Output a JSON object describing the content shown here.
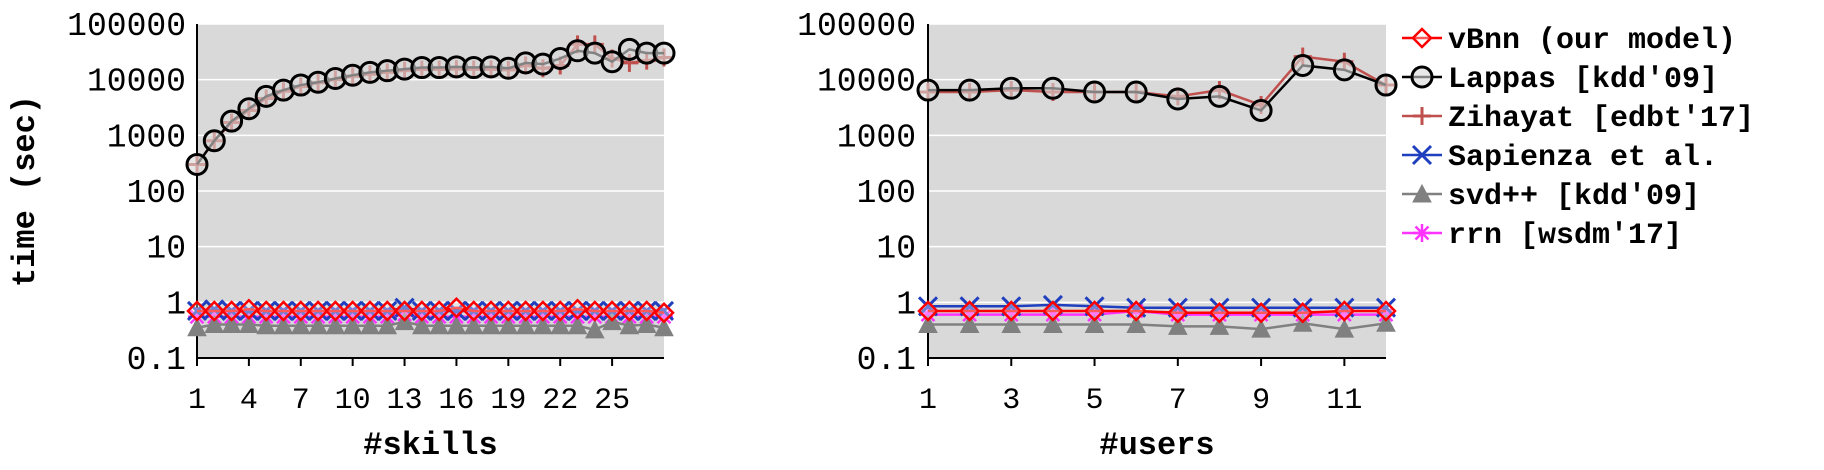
{
  "chart_data": [
    {
      "type": "line",
      "xlabel": "#skills",
      "ylabel": "time (sec)",
      "yscale": "log",
      "ylim": [
        0.1,
        100000
      ],
      "xlim": [
        1,
        28
      ],
      "ytick_labels": [
        "100000",
        "10000",
        "1000",
        "100",
        "10",
        "1",
        "0.1"
      ],
      "xtick_labels": [
        "1",
        "4",
        "7",
        "10",
        "13",
        "16",
        "19",
        "22",
        "25"
      ],
      "xtick_values": [
        1,
        4,
        7,
        10,
        13,
        16,
        19,
        22,
        25
      ],
      "grid": true,
      "background": "#d9d9d9",
      "x": [
        1,
        2,
        3,
        4,
        5,
        6,
        7,
        8,
        9,
        10,
        11,
        12,
        13,
        14,
        15,
        16,
        17,
        18,
        19,
        20,
        21,
        22,
        23,
        24,
        25,
        26,
        27,
        28
      ],
      "series": [
        {
          "name": "vBnn (our model)",
          "color": "#ff0000",
          "marker": "diamond",
          "values": [
            0.7,
            0.7,
            0.7,
            0.75,
            0.7,
            0.7,
            0.7,
            0.7,
            0.7,
            0.7,
            0.7,
            0.7,
            0.7,
            0.7,
            0.7,
            0.8,
            0.7,
            0.7,
            0.7,
            0.7,
            0.7,
            0.7,
            0.75,
            0.7,
            0.7,
            0.7,
            0.7,
            0.65
          ]
        },
        {
          "name": "Lappas [kdd'09]",
          "color": "#000000",
          "marker": "circle",
          "values": [
            300,
            800,
            1800,
            3000,
            5000,
            6500,
            8000,
            9000,
            10500,
            12000,
            13500,
            14500,
            15500,
            16500,
            16500,
            17000,
            16500,
            17000,
            16000,
            20000,
            19000,
            24000,
            33000,
            30000,
            21000,
            35000,
            30000,
            30000
          ]
        },
        {
          "name": "Zihayat [edbt'17]",
          "color": "#c0504d",
          "marker": "plus",
          "values": [
            300,
            800,
            1700,
            2800,
            4600,
            6200,
            7500,
            8800,
            10000,
            11500,
            12500,
            13500,
            14500,
            15200,
            15200,
            15500,
            15300,
            15300,
            15000,
            18000,
            16000,
            18000,
            43000,
            43000,
            24000,
            20000,
            22000,
            25000
          ]
        },
        {
          "name": "Sapienza et al.",
          "color": "#1f3fbf",
          "marker": "x",
          "values": [
            0.7,
            0.75,
            0.7,
            0.7,
            0.7,
            0.7,
            0.7,
            0.7,
            0.7,
            0.7,
            0.7,
            0.7,
            0.8,
            0.7,
            0.7,
            0.7,
            0.7,
            0.7,
            0.7,
            0.7,
            0.7,
            0.7,
            0.7,
            0.7,
            0.7,
            0.7,
            0.7,
            0.7
          ]
        },
        {
          "name": "svd++ [kdd'09]",
          "color": "#808080",
          "marker": "triangle",
          "values": [
            0.35,
            0.4,
            0.4,
            0.4,
            0.38,
            0.38,
            0.38,
            0.38,
            0.38,
            0.38,
            0.38,
            0.38,
            0.45,
            0.38,
            0.38,
            0.38,
            0.38,
            0.38,
            0.38,
            0.38,
            0.38,
            0.38,
            0.38,
            0.32,
            0.45,
            0.38,
            0.4,
            0.35
          ]
        },
        {
          "name": "rrn [wsdm'17]",
          "color": "#ff33ff",
          "marker": "asterisk",
          "values": [
            0.55,
            0.55,
            0.55,
            0.55,
            0.55,
            0.55,
            0.55,
            0.55,
            0.55,
            0.55,
            0.55,
            0.55,
            0.6,
            0.55,
            0.55,
            0.55,
            0.55,
            0.55,
            0.55,
            0.55,
            0.55,
            0.55,
            0.55,
            0.55,
            0.55,
            0.55,
            0.55,
            0.55
          ]
        }
      ]
    },
    {
      "type": "line",
      "xlabel": "#users",
      "ylabel": "",
      "yscale": "log",
      "ylim": [
        0.1,
        100000
      ],
      "xlim": [
        1,
        12
      ],
      "ytick_labels": [
        "100000",
        "10000",
        "1000",
        "100",
        "10",
        "1",
        "0.1"
      ],
      "xtick_labels": [
        "1",
        "3",
        "5",
        "7",
        "9",
        "11"
      ],
      "xtick_values": [
        1,
        3,
        5,
        7,
        9,
        11
      ],
      "grid": true,
      "background": "#d9d9d9",
      "x": [
        1,
        2,
        3,
        4,
        5,
        6,
        7,
        8,
        9,
        10,
        11,
        12
      ],
      "series": [
        {
          "name": "vBnn (our model)",
          "color": "#ff0000",
          "marker": "diamond",
          "values": [
            0.7,
            0.7,
            0.7,
            0.7,
            0.7,
            0.7,
            0.65,
            0.65,
            0.65,
            0.65,
            0.7,
            0.7
          ]
        },
        {
          "name": "Lappas [kdd'09]",
          "color": "#000000",
          "marker": "circle",
          "values": [
            6500,
            6500,
            7000,
            7000,
            6000,
            6000,
            4500,
            5000,
            2800,
            18000,
            15000,
            8000
          ]
        },
        {
          "name": "Zihayat [edbt'17]",
          "color": "#c0504d",
          "marker": "plus",
          "values": [
            6000,
            6000,
            6500,
            6000,
            6000,
            6000,
            5000,
            6500,
            3500,
            26000,
            21000,
            8000
          ]
        },
        {
          "name": "Sapienza et al.",
          "color": "#1f3fbf",
          "marker": "x",
          "values": [
            0.85,
            0.85,
            0.85,
            0.9,
            0.85,
            0.8,
            0.8,
            0.8,
            0.8,
            0.8,
            0.8,
            0.8
          ]
        },
        {
          "name": "svd++ [kdd'09]",
          "color": "#808080",
          "marker": "triangle",
          "values": [
            0.4,
            0.4,
            0.4,
            0.4,
            0.4,
            0.4,
            0.37,
            0.37,
            0.33,
            0.42,
            0.33,
            0.42
          ]
        },
        {
          "name": "rrn [wsdm'17]",
          "color": "#ff33ff",
          "marker": "asterisk",
          "values": [
            0.6,
            0.6,
            0.6,
            0.6,
            0.6,
            0.7,
            0.6,
            0.6,
            0.6,
            0.6,
            0.6,
            0.6
          ]
        }
      ]
    }
  ],
  "legend": {
    "placement": "right",
    "entries": [
      {
        "label": "vBnn (our model)",
        "color": "#ff0000",
        "marker": "diamond"
      },
      {
        "label": "Lappas [kdd'09]",
        "color": "#000000",
        "marker": "circle"
      },
      {
        "label": "Zihayat [edbt'17]",
        "color": "#c0504d",
        "marker": "plus"
      },
      {
        "label": "Sapienza et al.",
        "color": "#1f3fbf",
        "marker": "x"
      },
      {
        "label": "svd++ [kdd'09]",
        "color": "#808080",
        "marker": "triangle"
      },
      {
        "label": "rrn [wsdm'17]",
        "color": "#ff33ff",
        "marker": "asterisk"
      }
    ]
  }
}
